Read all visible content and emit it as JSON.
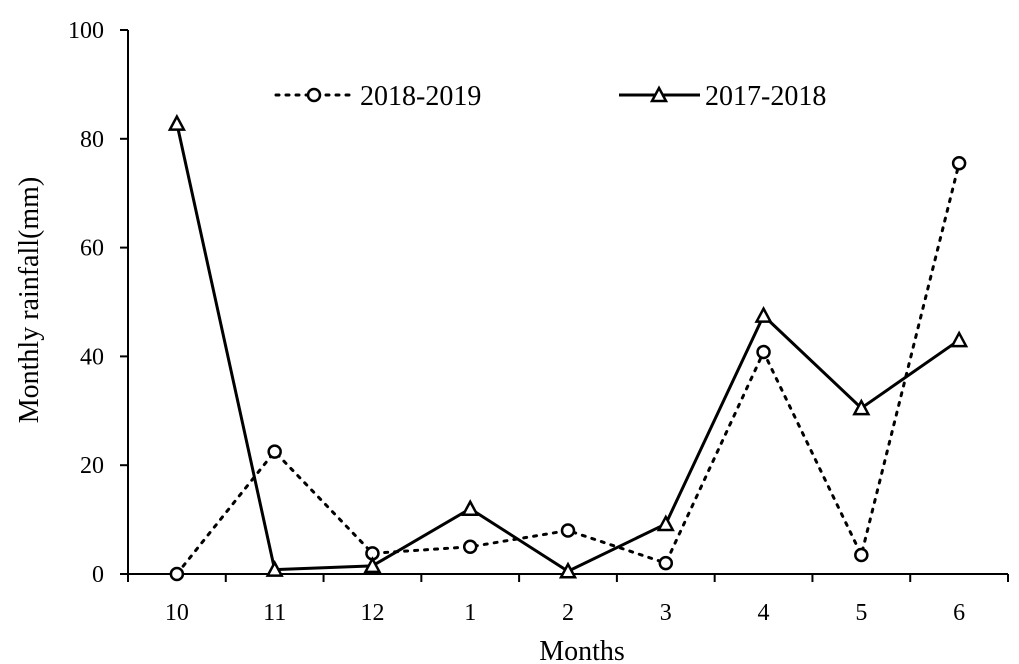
{
  "chart_data": {
    "type": "line",
    "xlabel": "Months",
    "ylabel": "Monthly rainfall(mm)",
    "categories": [
      "10",
      "11",
      "12",
      "1",
      "2",
      "3",
      "4",
      "5",
      "6"
    ],
    "ylim": [
      0,
      100
    ],
    "yticks": [
      "0",
      "20",
      "40",
      "60",
      "80",
      "100"
    ],
    "grid": false,
    "legend_position": "top",
    "series": [
      {
        "name": "2018-2019",
        "style": "dotted",
        "marker": "circle",
        "color": "#000000",
        "values": [
          0,
          22.5,
          3.8,
          5,
          8,
          2,
          40.8,
          3.5,
          75.5
        ]
      },
      {
        "name": "2017-2018",
        "style": "solid",
        "marker": "triangle",
        "color": "#000000",
        "values": [
          82.8,
          0.8,
          1.5,
          12,
          0.5,
          9.2,
          47.5,
          30.5,
          43
        ]
      }
    ]
  }
}
